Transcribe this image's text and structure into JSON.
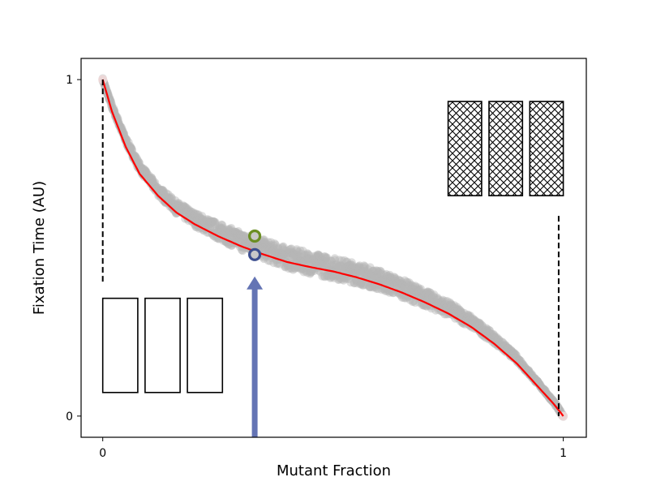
{
  "chart_data": {
    "type": "scatter",
    "title": "",
    "xlabel": "Mutant Fraction",
    "ylabel": "Fixation Time (AU)",
    "xlim": [
      -0.047,
      1.05
    ],
    "ylim": [
      -0.063,
      1.063
    ],
    "x_ticks": [
      {
        "value": 0,
        "label": "0"
      },
      {
        "value": 1,
        "label": "1"
      }
    ],
    "y_ticks": [
      {
        "value": 0,
        "label": "0"
      },
      {
        "value": 1,
        "label": "1"
      }
    ],
    "grid": false,
    "series": [
      {
        "name": "simulation runs",
        "style": "grey markers",
        "color": "#b5b5b5",
        "x": [
          0,
          0.02,
          0.05,
          0.08,
          0.12,
          0.16,
          0.2,
          0.25,
          0.3,
          0.35,
          0.4,
          0.45,
          0.5,
          0.55,
          0.6,
          0.65,
          0.7,
          0.75,
          0.8,
          0.85,
          0.9,
          0.95,
          0.98,
          1.0
        ],
        "y": [
          1.0,
          0.92,
          0.82,
          0.74,
          0.67,
          0.62,
          0.585,
          0.55,
          0.52,
          0.495,
          0.47,
          0.455,
          0.44,
          0.425,
          0.405,
          0.38,
          0.35,
          0.32,
          0.28,
          0.23,
          0.17,
          0.09,
          0.04,
          0.0
        ]
      },
      {
        "name": "fit",
        "style": "line",
        "color": "#ff0000",
        "x": [
          0,
          0.02,
          0.05,
          0.08,
          0.12,
          0.16,
          0.2,
          0.25,
          0.3,
          0.35,
          0.4,
          0.45,
          0.5,
          0.55,
          0.6,
          0.65,
          0.7,
          0.75,
          0.8,
          0.85,
          0.9,
          0.95,
          0.98,
          1.0
        ],
        "y": [
          1.0,
          0.905,
          0.8,
          0.72,
          0.655,
          0.605,
          0.57,
          0.535,
          0.505,
          0.48,
          0.458,
          0.443,
          0.43,
          0.413,
          0.392,
          0.367,
          0.338,
          0.305,
          0.265,
          0.215,
          0.155,
          0.08,
          0.035,
          0.0
        ]
      }
    ],
    "highlighted_points": [
      {
        "name": "green point",
        "x": 0.33,
        "y": 0.535,
        "color": "#6b8e23"
      },
      {
        "name": "blue point",
        "x": 0.33,
        "y": 0.48,
        "color": "#3d4f8f"
      }
    ],
    "annotations": [
      {
        "type": "arrow",
        "x": 0.33,
        "from_y": -0.063,
        "to_y": 0.415,
        "color": "#6474b4"
      },
      {
        "type": "dashed-line",
        "x": 0,
        "from_y": 1.0,
        "to_y": 0.395
      },
      {
        "type": "dashed-line",
        "x": 0.99,
        "from_y": 0.595,
        "to_y": 0.0
      },
      {
        "type": "empty-boxes",
        "count": 3,
        "x_range": [
          0,
          0.26
        ],
        "y_range": [
          0.07,
          0.35
        ],
        "fill": "none"
      },
      {
        "type": "hatched-boxes",
        "count": 3,
        "x_range": [
          0.75,
          1.0
        ],
        "y_range": [
          0.655,
          0.935
        ],
        "fill": "crosshatch"
      }
    ]
  }
}
